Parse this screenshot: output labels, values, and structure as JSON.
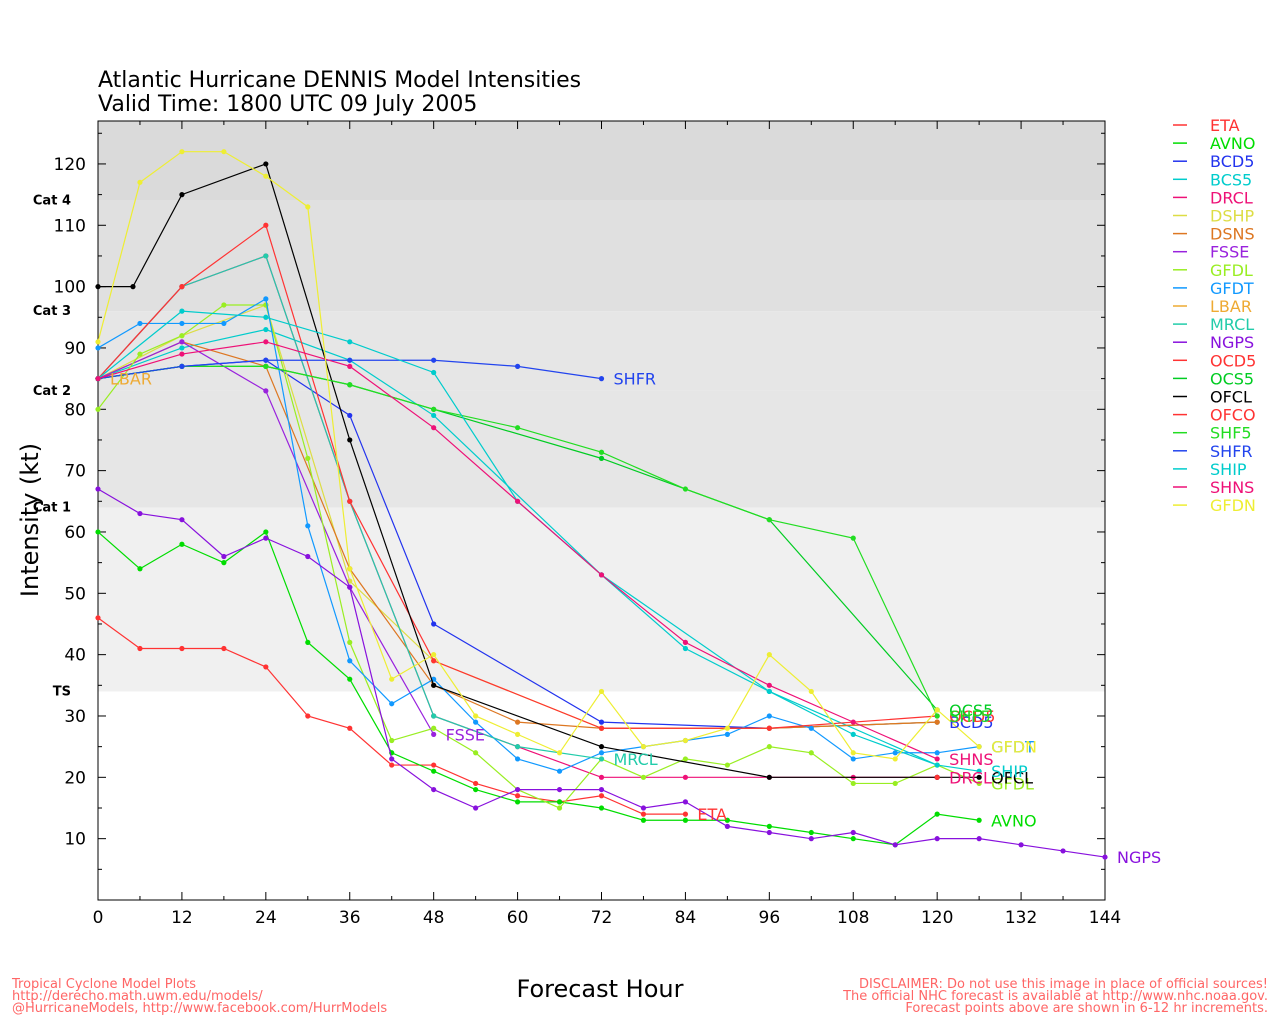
{
  "chart_data": {
    "type": "line",
    "title": "Atlantic Hurricane DENNIS Model Intensities",
    "subtitle": "Valid Time: 1800 UTC 09 July 2005",
    "xlabel": "Forecast Hour",
    "ylabel": "Intensity (kt)",
    "xlim": [
      0,
      144
    ],
    "ylim": [
      0,
      127
    ],
    "x_ticks": [
      0,
      12,
      24,
      36,
      48,
      60,
      72,
      84,
      96,
      108,
      120,
      132,
      144
    ],
    "y_ticks": [
      10,
      20,
      30,
      40,
      50,
      60,
      70,
      80,
      90,
      100,
      110,
      120
    ],
    "grid": false,
    "legend_position": "right",
    "category_bands": [
      {
        "label": "TS",
        "from": 34,
        "to": 64,
        "color": "#f0f0f0"
      },
      {
        "label": "Cat 1",
        "from": 64,
        "to": 83,
        "color": "#e6e6e6"
      },
      {
        "label": "Cat 2",
        "from": 83,
        "to": 96,
        "color": "#e6e6e6"
      },
      {
        "label": "Cat 3",
        "from": 96,
        "to": 114,
        "color": "#e0e0e0"
      },
      {
        "label": "Cat 4",
        "from": 114,
        "to": 127,
        "color": "#dadada"
      }
    ],
    "series": [
      {
        "name": "ETA",
        "color": "#ff3333",
        "x": [
          0,
          6,
          12,
          18,
          24,
          30,
          36,
          42,
          48,
          54,
          60,
          66,
          72,
          78,
          84
        ],
        "values": [
          46,
          41,
          41,
          41,
          38,
          30,
          28,
          22,
          22,
          19,
          17,
          16,
          17,
          14,
          14
        ],
        "label": "ETA"
      },
      {
        "name": "AVNO",
        "color": "#00dd00",
        "x": [
          0,
          6,
          12,
          18,
          24,
          30,
          36,
          42,
          48,
          54,
          60,
          66,
          72,
          78,
          84,
          90,
          96,
          102,
          108,
          114,
          120,
          126
        ],
        "values": [
          60,
          54,
          58,
          55,
          60,
          42,
          36,
          24,
          21,
          18,
          16,
          16,
          15,
          13,
          13,
          13,
          12,
          11,
          10,
          9,
          14,
          13
        ],
        "label": "AVNO"
      },
      {
        "name": "BCD5",
        "color": "#2233ee",
        "x": [
          0,
          12,
          24,
          36,
          48,
          72,
          96,
          120
        ],
        "values": [
          85,
          87,
          88,
          79,
          45,
          29,
          28,
          29
        ],
        "label": "BCD5"
      },
      {
        "name": "BCS5",
        "color": "#00cccc",
        "x": [
          0,
          12,
          24,
          36,
          48,
          72,
          96,
          120
        ],
        "values": [
          85,
          90,
          93,
          88,
          79,
          53,
          34,
          22
        ]
      },
      {
        "name": "DRCL",
        "color": "#ee1177",
        "x": [
          0,
          12,
          24,
          36,
          48,
          60,
          72,
          84,
          96,
          108,
          120
        ],
        "values": [
          85,
          100,
          105,
          65,
          30,
          25,
          20,
          20,
          20,
          20,
          20
        ],
        "label": "DRCL"
      },
      {
        "name": "DSHP",
        "color": "#dddd44",
        "x": [
          0,
          12,
          24,
          36,
          48,
          72,
          96,
          120
        ],
        "values": [
          85,
          92,
          97,
          52,
          39,
          28,
          28,
          29
        ]
      },
      {
        "name": "DSNS",
        "color": "#dd7722",
        "x": [
          0,
          12,
          24,
          36,
          48,
          60,
          72,
          96,
          120
        ],
        "values": [
          85,
          91,
          87,
          54,
          35,
          29,
          28,
          28,
          29
        ]
      },
      {
        "name": "FSSE",
        "color": "#9922dd",
        "x": [
          0,
          12,
          24,
          36,
          48
        ],
        "values": [
          85,
          91,
          83,
          51,
          27
        ],
        "label": "FSSE"
      },
      {
        "name": "GFDL",
        "color": "#99ee22",
        "x": [
          0,
          6,
          12,
          18,
          24,
          30,
          36,
          42,
          48,
          54,
          60,
          66,
          72,
          78,
          84,
          90,
          96,
          102,
          108,
          114,
          120,
          126
        ],
        "values": [
          80,
          89,
          92,
          97,
          97,
          72,
          42,
          26,
          28,
          24,
          18,
          15,
          23,
          20,
          23,
          22,
          25,
          24,
          19,
          19,
          22,
          19
        ],
        "label": "GFDL"
      },
      {
        "name": "GFDT",
        "color": "#1199ff",
        "x": [
          0,
          6,
          12,
          18,
          24,
          30,
          36,
          42,
          48,
          54,
          60,
          66,
          72,
          78,
          84,
          90,
          96,
          102,
          108,
          114,
          120,
          126
        ],
        "values": [
          90,
          94,
          94,
          94,
          98,
          61,
          39,
          32,
          36,
          29,
          23,
          21,
          24,
          25,
          26,
          27,
          30,
          28,
          23,
          24,
          24,
          25
        ],
        "label": "GFDT"
      },
      {
        "name": "LBAR",
        "color": "#eeaa33",
        "x": [
          0
        ],
        "values": [
          85
        ],
        "label": "LBAR"
      },
      {
        "name": "MRCL",
        "color": "#22ccaa",
        "x": [
          0,
          12,
          24,
          36,
          48,
          60,
          72
        ],
        "values": [
          85,
          100,
          105,
          65,
          30,
          25,
          23
        ],
        "label": "MRCL"
      },
      {
        "name": "NGPS",
        "color": "#8811dd",
        "x": [
          0,
          6,
          12,
          18,
          24,
          30,
          36,
          42,
          48,
          54,
          60,
          66,
          72,
          78,
          84,
          90,
          96,
          102,
          108,
          114,
          120,
          126,
          132,
          138,
          144
        ],
        "values": [
          67,
          63,
          62,
          56,
          59,
          56,
          51,
          23,
          18,
          15,
          18,
          18,
          18,
          15,
          16,
          12,
          11,
          10,
          11,
          9,
          10,
          10,
          9,
          8,
          7
        ],
        "label": "NGPS"
      },
      {
        "name": "OCD5",
        "color": "#ff3333",
        "x": [
          0,
          12,
          24,
          36,
          48,
          72,
          96,
          120
        ],
        "values": [
          85,
          100,
          110,
          65,
          39,
          28,
          28,
          30
        ],
        "label": "OCD5"
      },
      {
        "name": "OCS5",
        "color": "#00cc22",
        "x": [
          0,
          12,
          24,
          36,
          48,
          72,
          96,
          120
        ],
        "values": [
          85,
          87,
          87,
          84,
          80,
          72,
          62,
          31
        ],
        "label": "OCS5"
      },
      {
        "name": "OFCL",
        "color": "#000000",
        "x": [
          0,
          5,
          12,
          24,
          36,
          48,
          72,
          96,
          120,
          126
        ],
        "values": [
          100,
          100,
          115,
          120,
          75,
          35,
          25,
          20,
          20,
          20
        ],
        "label": "OFCL"
      },
      {
        "name": "OFCO",
        "color": "#ff3333",
        "x": [
          120
        ],
        "values": [
          20
        ]
      },
      {
        "name": "SHF5",
        "color": "#22dd22",
        "x": [
          0,
          12,
          24,
          36,
          48,
          60,
          72,
          84,
          96,
          108,
          120
        ],
        "values": [
          85,
          87,
          87,
          84,
          80,
          77,
          73,
          67,
          62,
          59,
          30
        ],
        "label": "SHF5"
      },
      {
        "name": "SHFR",
        "color": "#2244ee",
        "x": [
          0,
          12,
          24,
          36,
          48,
          60,
          72
        ],
        "values": [
          85,
          87,
          88,
          88,
          88,
          87,
          85
        ],
        "label": "SHFR"
      },
      {
        "name": "SHIP",
        "color": "#00cccc",
        "x": [
          0,
          12,
          24,
          36,
          48,
          60,
          72,
          84,
          96,
          108,
          120,
          126
        ],
        "values": [
          85,
          96,
          95,
          91,
          86,
          65,
          53,
          41,
          34,
          27,
          22,
          21
        ],
        "label": "SHIP"
      },
      {
        "name": "SHNS",
        "color": "#ee1177",
        "x": [
          0,
          12,
          24,
          36,
          48,
          60,
          72,
          84,
          96,
          108,
          120
        ],
        "values": [
          85,
          89,
          91,
          87,
          77,
          65,
          53,
          42,
          35,
          29,
          23
        ],
        "label": "SHNS"
      },
      {
        "name": "GFDN",
        "color": "#eeee33",
        "x": [
          0,
          6,
          12,
          18,
          24,
          30,
          36,
          42,
          48,
          54,
          60,
          66,
          72,
          78,
          84,
          90,
          96,
          102,
          108,
          114,
          120,
          126
        ],
        "values": [
          91,
          117,
          122,
          122,
          118,
          113,
          54,
          36,
          40,
          30,
          27,
          24,
          34,
          25,
          26,
          28,
          40,
          34,
          24,
          23,
          31,
          25
        ],
        "label": "GFDN"
      }
    ]
  },
  "footer": {
    "left": [
      "Tropical Cyclone Model Plots",
      "http://derecho.math.uwm.edu/models/",
      "@HurricaneModels, http://www.facebook.com/HurrModels"
    ],
    "right": [
      "DISCLAIMER: Do not use this image in place of official sources!",
      "The official NHC forecast is available at http://www.nhc.noaa.gov.",
      "Forecast points above are shown in 6-12 hr increments."
    ]
  }
}
